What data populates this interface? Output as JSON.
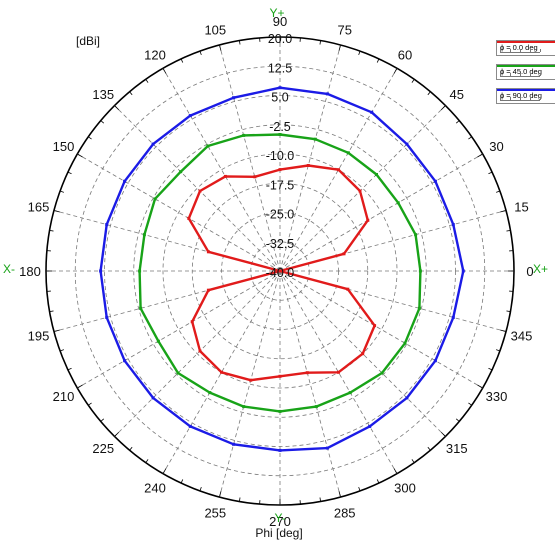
{
  "chart_data": {
    "type": "polar",
    "unit_label": "[dBi]",
    "x_axis_label": "Phi [deg]",
    "axis_tags": {
      "top": "Y+",
      "bottom": "Y-",
      "left": "X-",
      "right": "X+"
    },
    "radial_ticks": [
      "20.0",
      "12.5",
      "5.0",
      "-2.5",
      "-10.0",
      "-17.5",
      "-25.0",
      "-32.5",
      "-40.0"
    ],
    "radial_range": [
      -40,
      20
    ],
    "angle_ticks": [
      "0",
      "15",
      "30",
      "45",
      "60",
      "75",
      "90",
      "105",
      "120",
      "135",
      "150",
      "165",
      "180",
      "195",
      "210",
      "225",
      "240",
      "255",
      "270",
      "285",
      "300",
      "315",
      "330",
      "345"
    ],
    "angles": [
      0,
      15,
      30,
      45,
      60,
      75,
      90,
      105,
      120,
      135,
      150,
      165,
      180,
      195,
      210,
      225,
      240,
      255,
      270,
      285,
      300,
      315,
      330,
      345
    ],
    "series": [
      {
        "name": "ɸ = 0.0 deg",
        "color": "#e11b1b",
        "values": [
          -40,
          -23,
          -14,
          -11,
          -10,
          -12,
          -14,
          -15,
          -12,
          -11,
          -13,
          -21,
          -40,
          -21,
          -14,
          -11,
          -10,
          -11,
          -13,
          -13,
          -10,
          -10,
          -12,
          -22
        ]
      },
      {
        "name": "ɸ = 45.0 deg",
        "color": "#18a318",
        "values": [
          -4,
          -4,
          -5,
          -5,
          -5,
          -5,
          -5,
          -4,
          -3,
          -4,
          -3,
          -4,
          -4,
          -3,
          -4,
          -3,
          -4,
          -4,
          -4,
          -4,
          -4,
          -3,
          -3,
          -3
        ]
      },
      {
        "name": "ɸ = 90.0 deg",
        "color": "#1b1be6",
        "values": [
          7,
          6,
          6,
          6,
          7,
          7,
          7,
          6,
          6,
          6,
          6,
          6,
          6,
          6,
          6,
          6,
          6,
          6,
          6,
          7,
          6,
          6,
          6,
          6
        ]
      }
    ]
  }
}
